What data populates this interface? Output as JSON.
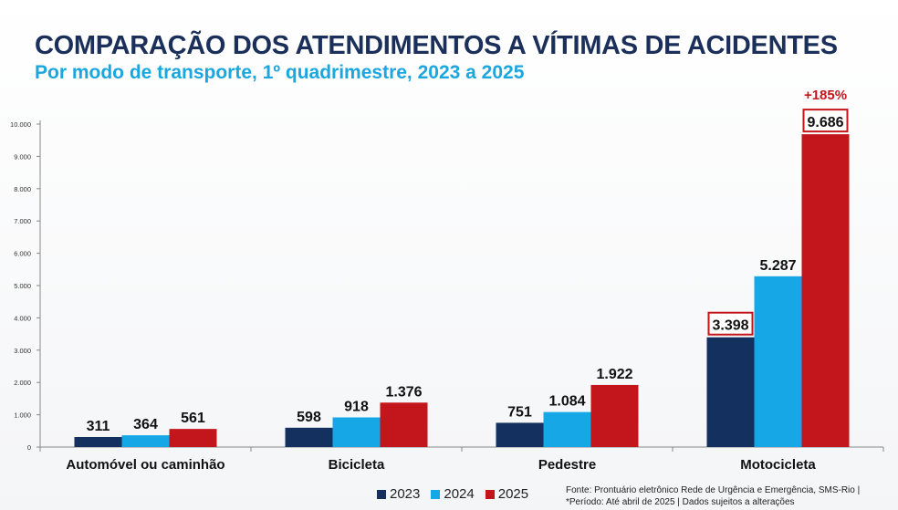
{
  "chart_data": {
    "type": "bar",
    "title": "COMPARAÇÃO DOS ATENDIMENTOS A VÍTIMAS DE ACIDENTES",
    "subtitle": "Por modo de transporte, 1º quadrimestre, 2023 a 2025",
    "categories": [
      "Automóvel ou caminhão",
      "Bicicleta",
      "Pedestre",
      "Motocicleta"
    ],
    "series": [
      {
        "name": "2023",
        "color": "#14305e",
        "values": [
          311,
          598,
          751,
          3398
        ],
        "labels": [
          "311",
          "598",
          "751",
          "3.398"
        ]
      },
      {
        "name": "2024",
        "color": "#15a7e6",
        "values": [
          364,
          918,
          1084,
          5287
        ],
        "labels": [
          "364",
          "918",
          "1.084",
          "5.287"
        ]
      },
      {
        "name": "2025",
        "color": "#c3161c",
        "values": [
          561,
          1376,
          1922,
          9686
        ],
        "labels": [
          "561",
          "1.376",
          "1.922",
          "9.686"
        ]
      }
    ],
    "yticks": [
      "0",
      "1.000",
      "2.000",
      "3.000",
      "4.000",
      "5.000",
      "6.000",
      "7.000",
      "8.000",
      "9.000",
      "10.000"
    ],
    "ylim": [
      0,
      10000
    ],
    "highlighted": [
      "3.398",
      "9.686"
    ],
    "annotation": "+185%",
    "xlabel": "",
    "ylabel": ""
  },
  "source_lines": [
    "Fonte: Prontuário eletrônico Rede de Urgência e Emergência, SMS-Rio  |",
    "*Período: Até abril de 2025  |  Dados sujeitos a alterações"
  ]
}
